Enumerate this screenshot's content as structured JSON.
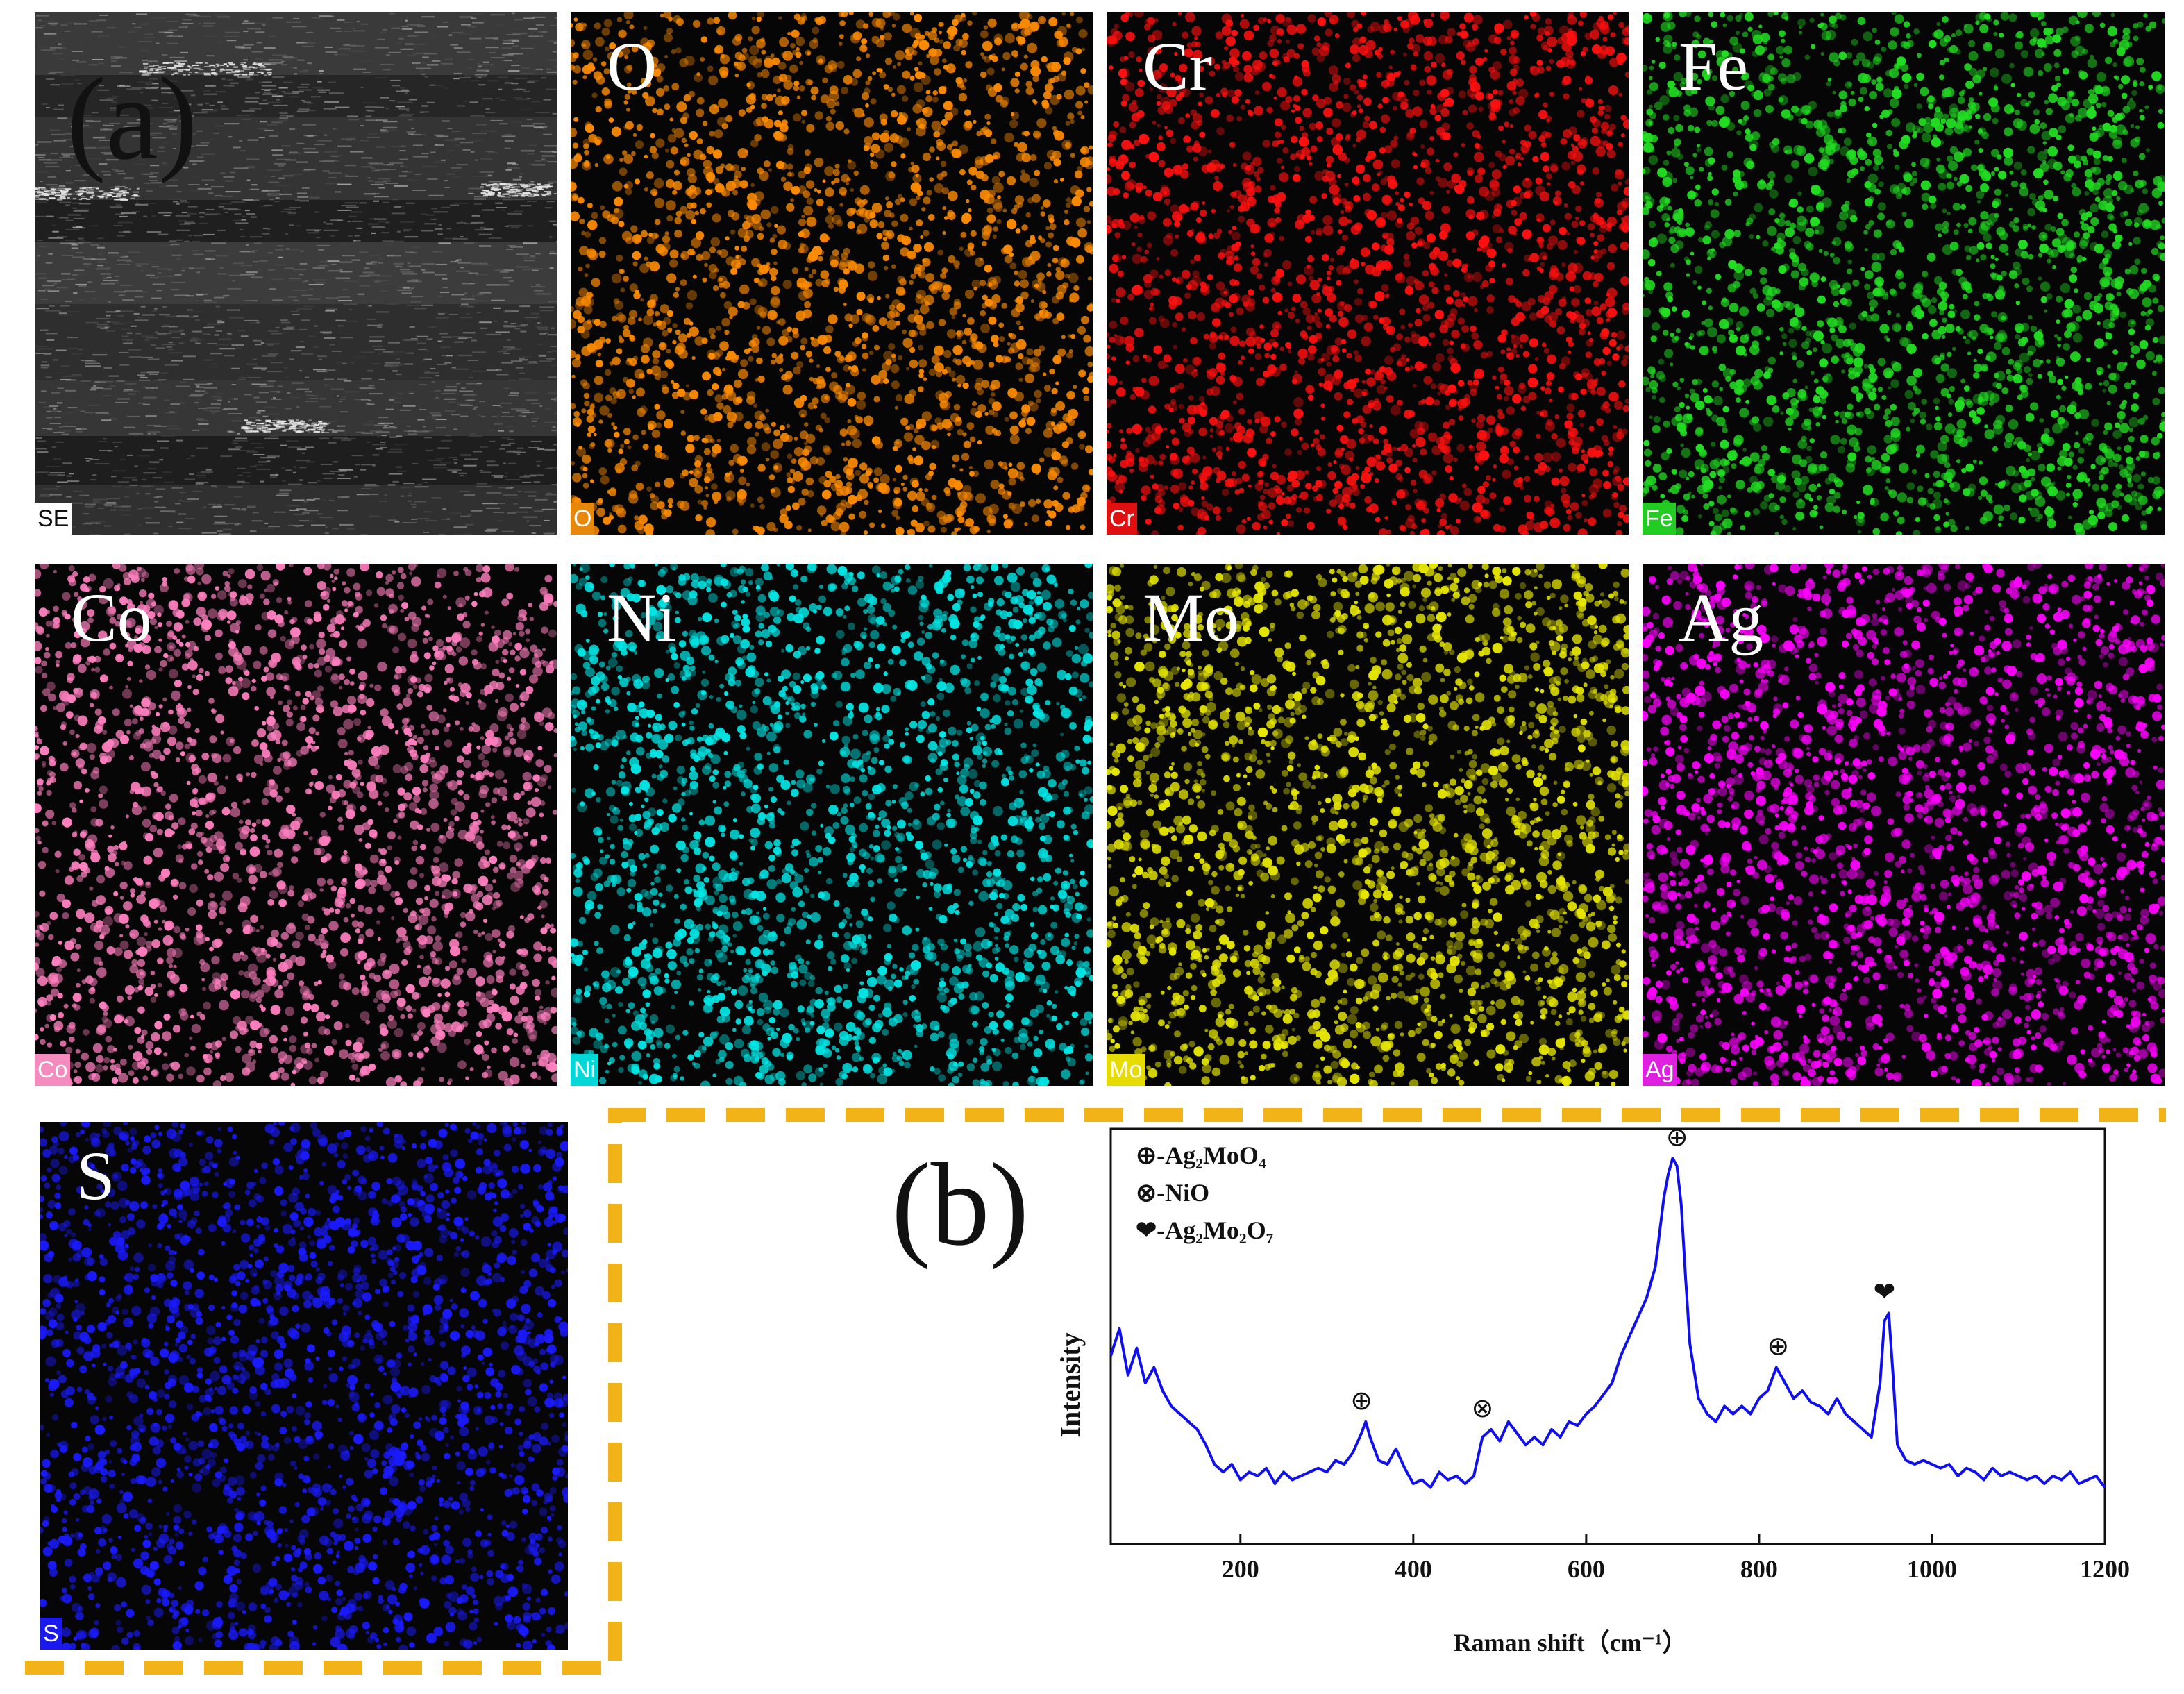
{
  "labels": {
    "panel_a": "(a)",
    "panel_b": "(b)"
  },
  "edx_maps": [
    {
      "element": "SE",
      "title": "",
      "tag": "SE",
      "color": "#a0a0a0",
      "tag_bg": "#ffffff",
      "tag_fg": "#111111"
    },
    {
      "element": "O",
      "title": "O",
      "tag": "O",
      "color": "#ff8c00",
      "tag_bg": "#e8880a",
      "tag_fg": "#ffffff"
    },
    {
      "element": "Cr",
      "title": "Cr",
      "tag": "Cr",
      "color": "#ff1010",
      "tag_bg": "#e01010",
      "tag_fg": "#ffffff"
    },
    {
      "element": "Fe",
      "title": "Fe",
      "tag": "Fe",
      "color": "#22dd22",
      "tag_bg": "#22cc22",
      "tag_fg": "#ffffff"
    },
    {
      "element": "Co",
      "title": "Co",
      "tag": "Co",
      "color": "#ff7fbf",
      "tag_bg": "#f58cc0",
      "tag_fg": "#ffffff"
    },
    {
      "element": "Ni",
      "title": "Ni",
      "tag": "Ni",
      "color": "#00e5e5",
      "tag_bg": "#00d7d7",
      "tag_fg": "#ffffff"
    },
    {
      "element": "Mo",
      "title": "Mo",
      "tag": "Mo",
      "color": "#e6e600",
      "tag_bg": "#e6dc00",
      "tag_fg": "#ffffff"
    },
    {
      "element": "Ag",
      "title": "Ag",
      "tag": "Ag",
      "color": "#ff00ff",
      "tag_bg": "#e020e0",
      "tag_fg": "#ffffff"
    },
    {
      "element": "S",
      "title": "S",
      "tag": "S",
      "color": "#1a1aff",
      "tag_bg": "#1a1aee",
      "tag_fg": "#ffffff"
    }
  ],
  "frame_color": "#f2b318",
  "chart_data": {
    "type": "line",
    "title": "",
    "xlabel": "Raman shift（cm⁻¹）",
    "ylabel": "Intensity",
    "xlim": [
      50,
      1200
    ],
    "ylim": [
      0,
      100
    ],
    "xticks": [
      200,
      400,
      600,
      800,
      1000,
      1200
    ],
    "show_yticks": false,
    "line_color": "#1010ee",
    "legend": [
      {
        "symbol": "⊕",
        "text": "-Ag₂MoO₄"
      },
      {
        "symbol": "⊗",
        "text": "-NiO"
      },
      {
        "symbol": "❤",
        "text": "-Ag₂Mo₂O₇"
      }
    ],
    "series": [
      {
        "name": "Raman spectrum",
        "x": [
          50,
          60,
          70,
          80,
          90,
          100,
          110,
          120,
          130,
          140,
          150,
          160,
          170,
          180,
          190,
          200,
          210,
          220,
          230,
          240,
          250,
          260,
          270,
          280,
          290,
          300,
          310,
          320,
          330,
          340,
          345,
          350,
          360,
          370,
          380,
          390,
          400,
          410,
          420,
          430,
          440,
          450,
          460,
          470,
          480,
          490,
          500,
          510,
          520,
          530,
          540,
          550,
          560,
          570,
          580,
          590,
          600,
          610,
          620,
          630,
          640,
          650,
          660,
          670,
          680,
          690,
          695,
          700,
          705,
          710,
          715,
          720,
          730,
          740,
          750,
          760,
          770,
          780,
          790,
          800,
          810,
          820,
          830,
          840,
          850,
          860,
          870,
          880,
          890,
          900,
          910,
          920,
          930,
          940,
          945,
          950,
          955,
          960,
          970,
          980,
          990,
          1000,
          1010,
          1020,
          1030,
          1040,
          1050,
          1060,
          1070,
          1080,
          1090,
          1100,
          1110,
          1120,
          1130,
          1140,
          1150,
          1160,
          1170,
          1180,
          1190,
          1200
        ],
        "y": [
          45,
          52,
          40,
          47,
          38,
          42,
          36,
          32,
          30,
          28,
          26,
          22,
          17,
          15,
          17,
          13,
          15,
          14,
          16,
          12,
          15,
          13,
          14,
          15,
          16,
          15,
          18,
          17,
          20,
          25,
          28,
          24,
          18,
          17,
          21,
          16,
          12,
          13,
          11,
          15,
          13,
          14,
          12,
          14,
          24,
          26,
          23,
          28,
          25,
          22,
          24,
          22,
          26,
          24,
          28,
          27,
          30,
          32,
          35,
          38,
          45,
          50,
          55,
          60,
          68,
          86,
          92,
          96,
          94,
          84,
          65,
          48,
          34,
          30,
          28,
          32,
          30,
          32,
          30,
          34,
          36,
          42,
          38,
          34,
          36,
          33,
          32,
          30,
          34,
          30,
          28,
          26,
          24,
          38,
          54,
          56,
          40,
          22,
          18,
          17,
          18,
          17,
          16,
          17,
          14,
          16,
          15,
          13,
          16,
          14,
          15,
          14,
          13,
          14,
          12,
          14,
          13,
          15,
          12,
          13,
          14,
          11
        ]
      }
    ],
    "annotations": [
      {
        "symbol": "⊕",
        "x": 340,
        "y": 28
      },
      {
        "symbol": "⊗",
        "x": 480,
        "y": 26
      },
      {
        "symbol": "⊕",
        "x": 705,
        "y": 96
      },
      {
        "symbol": "⊕",
        "x": 822,
        "y": 42
      },
      {
        "symbol": "❤",
        "x": 945,
        "y": 56
      }
    ]
  }
}
